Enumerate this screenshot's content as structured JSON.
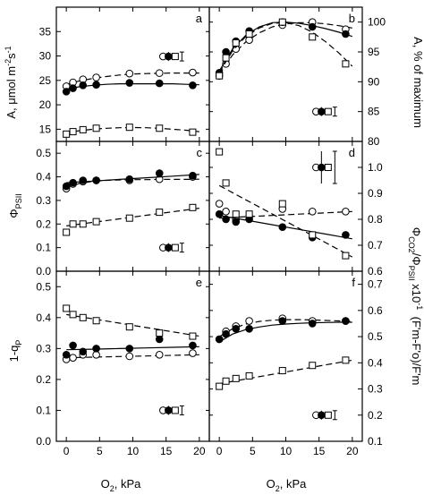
{
  "chart_data": [
    {
      "id": "a",
      "type": "scatter",
      "panel_letter": "a",
      "ylabel": "A, μmol m⁻²s⁻¹",
      "ylim": [
        12.5,
        40
      ],
      "yticks": [
        15,
        20,
        25,
        30,
        35
      ],
      "xticks": [
        0,
        5,
        10,
        15,
        20
      ],
      "series": [
        {
          "marker": "open-circle",
          "line": "dashed",
          "x": [
            0,
            1,
            2.5,
            4.5,
            9.5,
            14,
            19
          ],
          "y": [
            23.8,
            24.6,
            25.2,
            25.6,
            26.4,
            26.5,
            26.6
          ],
          "fit_x": [
            0,
            2,
            4,
            6,
            8,
            10,
            12,
            14,
            16,
            18,
            20
          ],
          "fit_y": [
            24.2,
            24.9,
            25.4,
            25.8,
            26.1,
            26.3,
            26.4,
            26.45,
            26.5,
            26.5,
            26.5
          ]
        },
        {
          "marker": "filled-circle",
          "line": "solid",
          "x": [
            0,
            1,
            2.5,
            4.5,
            9.5,
            14,
            19
          ],
          "y": [
            22.7,
            23.4,
            24.0,
            24.1,
            24.5,
            24.4,
            24.0
          ],
          "fit_x": [
            0,
            2,
            4,
            6,
            8,
            10,
            12,
            14,
            16,
            18,
            20
          ],
          "fit_y": [
            23.2,
            23.7,
            24.0,
            24.2,
            24.3,
            24.3,
            24.3,
            24.3,
            24.3,
            24.2,
            24.1
          ]
        },
        {
          "marker": "open-square",
          "line": "dashed",
          "x": [
            0,
            1,
            2.5,
            4.5,
            9.5,
            14,
            19
          ],
          "y": [
            14.0,
            14.5,
            14.9,
            15.2,
            15.4,
            15.2,
            14.4
          ],
          "fit_x": [
            0,
            2,
            4,
            6,
            8,
            10,
            12,
            14,
            16,
            18,
            20
          ],
          "fit_y": [
            14.3,
            14.7,
            15.0,
            15.2,
            15.3,
            15.35,
            15.3,
            15.2,
            15.0,
            14.8,
            14.5
          ]
        }
      ],
      "legend_symbols": {
        "x": 16.3,
        "y": 29.9
      }
    },
    {
      "id": "b",
      "type": "scatter",
      "panel_letter": "b",
      "ylabel": "A, % of maximum",
      "ylim": [
        80,
        102.5
      ],
      "yticks": [
        80,
        85,
        90,
        95,
        100
      ],
      "xticks": [
        0,
        5,
        10,
        15,
        20
      ],
      "series": [
        {
          "marker": "open-circle",
          "line": "dashed",
          "x": [
            0,
            1,
            2.5,
            4.5,
            9.5,
            14,
            19
          ],
          "y": [
            91.0,
            93.0,
            95.5,
            97.0,
            99.5,
            100,
            98.8
          ],
          "fit_x": [
            0,
            2,
            4,
            6,
            8,
            10,
            12,
            14,
            16,
            18,
            20
          ],
          "fit_y": [
            91.2,
            94.5,
            96.7,
            98.2,
            99.2,
            99.7,
            99.9,
            99.9,
            99.7,
            99.4,
            99.0
          ]
        },
        {
          "marker": "filled-circle",
          "line": "solid",
          "x": [
            0,
            1,
            2.5,
            4.5,
            9.5,
            14,
            19
          ],
          "y": [
            91.5,
            95.0,
            96.8,
            98.5,
            100,
            99.2,
            98.0
          ],
          "fit_x": [
            0,
            2,
            4,
            6,
            8,
            10,
            12,
            14,
            16,
            18,
            20
          ],
          "fit_y": [
            91.8,
            95.5,
            97.8,
            99.2,
            99.9,
            100,
            99.8,
            99.4,
            98.9,
            98.3,
            97.6
          ]
        },
        {
          "marker": "open-square",
          "line": "dashed",
          "x": [
            0,
            1,
            2.5,
            4.5,
            9.5,
            14,
            19
          ],
          "y": [
            91.0,
            94.0,
            96.5,
            98.0,
            100,
            97.5,
            93.0
          ],
          "fit_x": [
            0,
            2,
            4,
            6,
            8,
            10,
            12,
            14,
            16,
            18,
            20
          ],
          "fit_y": [
            91.5,
            95.2,
            97.6,
            99.0,
            99.8,
            99.9,
            99.4,
            98.3,
            96.7,
            94.8,
            92.6
          ]
        }
      ],
      "legend_symbols": {
        "x": 16.3,
        "y": 85.0
      }
    },
    {
      "id": "c",
      "type": "scatter",
      "panel_letter": "c",
      "ylabel": "ΦPSII",
      "ylabel_main": "Φ",
      "ylabel_sub": "PSII",
      "ylim": [
        0,
        0.55
      ],
      "yticks": [
        0,
        0.1,
        0.2,
        0.3,
        0.4,
        0.5
      ],
      "xticks": [
        0,
        5,
        10,
        15,
        20
      ],
      "series": [
        {
          "marker": "open-circle",
          "line": "dashed",
          "x": [
            0,
            1,
            2.5,
            4.5,
            9.5,
            14,
            19
          ],
          "y": [
            0.35,
            0.37,
            0.38,
            0.385,
            0.385,
            0.39,
            0.4
          ],
          "fit_x": [
            0,
            2,
            4,
            6,
            8,
            10,
            12,
            14,
            16,
            18,
            20
          ],
          "fit_y": [
            0.355,
            0.372,
            0.381,
            0.385,
            0.387,
            0.388,
            0.388,
            0.389,
            0.389,
            0.389,
            0.39
          ]
        },
        {
          "marker": "filled-circle",
          "line": "solid",
          "x": [
            0,
            1,
            2.5,
            4.5,
            9.5,
            14,
            19
          ],
          "y": [
            0.36,
            0.375,
            0.385,
            0.385,
            0.39,
            0.415,
            0.405
          ],
          "fit_x": [
            0,
            4,
            8,
            12,
            16,
            20
          ],
          "fit_y": [
            0.375,
            0.382,
            0.389,
            0.396,
            0.403,
            0.41
          ]
        },
        {
          "marker": "open-square",
          "line": "dashed",
          "x": [
            0,
            1,
            2.5,
            4.5,
            9.5,
            14,
            19
          ],
          "y": [
            0.165,
            0.2,
            0.2,
            0.21,
            0.225,
            0.25,
            0.27
          ],
          "fit_x": [
            0,
            4,
            8,
            12,
            16,
            20
          ],
          "fit_y": [
            0.192,
            0.207,
            0.222,
            0.237,
            0.252,
            0.267
          ]
        }
      ],
      "legend_symbols": {
        "x": 16.3,
        "y": 0.1
      }
    },
    {
      "id": "d",
      "type": "scatter",
      "panel_letter": "d",
      "ylabel": "ΦCO2/ΦPSII x10⁻¹",
      "ylim": [
        0.6,
        1.1
      ],
      "yticks": [
        0.6,
        0.7,
        0.8,
        0.9,
        1.0
      ],
      "xticks": [
        0,
        5,
        10,
        15,
        20
      ],
      "series": [
        {
          "marker": "open-circle",
          "line": "dashed",
          "x": [
            0,
            1,
            2.5,
            4.5,
            9.5,
            14,
            19
          ],
          "y": [
            0.86,
            0.83,
            0.8,
            0.81,
            0.84,
            0.83,
            0.83
          ],
          "fit_x": [
            0,
            4,
            8,
            12,
            16,
            20
          ],
          "fit_y": [
            0.805,
            0.81,
            0.815,
            0.82,
            0.825,
            0.83
          ]
        },
        {
          "marker": "filled-circle",
          "line": "solid",
          "x": [
            0,
            1,
            2.5,
            4.5,
            9.5,
            14,
            19
          ],
          "y": [
            0.82,
            0.8,
            0.79,
            0.8,
            0.77,
            0.73,
            0.74
          ],
          "fit_x": [
            0,
            4,
            8,
            12,
            16,
            20
          ],
          "fit_y": [
            0.815,
            0.797,
            0.779,
            0.761,
            0.743,
            0.725
          ]
        },
        {
          "marker": "open-square",
          "line": "dashed",
          "x": [
            0,
            1,
            2.5,
            4.5,
            9.5,
            14,
            19
          ],
          "y": [
            1.06,
            0.94,
            0.82,
            0.82,
            0.86,
            0.74,
            0.66
          ],
          "fit_x": [
            0,
            4,
            8,
            12,
            16,
            20
          ],
          "fit_y": [
            0.93,
            0.875,
            0.82,
            0.765,
            0.71,
            0.655
          ]
        }
      ],
      "legend_symbols": {
        "x": 16.3,
        "y": 1.0
      }
    },
    {
      "id": "e",
      "type": "scatter",
      "panel_letter": "e",
      "ylabel": "1-qP",
      "ylabel_main": "1-q",
      "ylabel_sub": "P",
      "ylim": [
        0,
        0.55
      ],
      "yticks": [
        0,
        0.1,
        0.2,
        0.3,
        0.4,
        0.5
      ],
      "xticks": [
        0,
        5,
        10,
        15,
        20
      ],
      "series": [
        {
          "marker": "open-circle",
          "line": "dashed",
          "x": [
            0,
            1,
            2.5,
            4.5,
            9.5,
            14,
            19
          ],
          "y": [
            0.265,
            0.27,
            0.28,
            0.28,
            0.275,
            0.28,
            0.285
          ],
          "fit_x": [
            0,
            4,
            8,
            12,
            16,
            20
          ],
          "fit_y": [
            0.27,
            0.272,
            0.274,
            0.276,
            0.278,
            0.28
          ]
        },
        {
          "marker": "filled-circle",
          "line": "solid",
          "x": [
            0,
            1,
            2.5,
            4.5,
            9.5,
            14,
            19
          ],
          "y": [
            0.28,
            0.31,
            0.29,
            0.3,
            0.3,
            0.33,
            0.31
          ],
          "fit_x": [
            0,
            4,
            8,
            12,
            16,
            20
          ],
          "fit_y": [
            0.296,
            0.298,
            0.3,
            0.302,
            0.304,
            0.306
          ]
        },
        {
          "marker": "open-square",
          "line": "dashed",
          "x": [
            0,
            1,
            2.5,
            4.5,
            9.5,
            14,
            19
          ],
          "y": [
            0.43,
            0.41,
            0.4,
            0.39,
            0.37,
            0.35,
            0.34
          ],
          "fit_x": [
            0,
            4,
            8,
            12,
            16,
            20
          ],
          "fit_y": [
            0.41,
            0.396,
            0.382,
            0.368,
            0.354,
            0.34
          ]
        }
      ],
      "legend_symbols": {
        "x": 16.3,
        "y": 0.1
      }
    },
    {
      "id": "f",
      "type": "scatter",
      "panel_letter": "f",
      "ylabel": "(F'm-F'o)/F'm",
      "ylim": [
        0.1,
        0.75
      ],
      "yticks": [
        0.1,
        0.2,
        0.3,
        0.4,
        0.5,
        0.6,
        0.7
      ],
      "xticks": [
        0,
        5,
        10,
        15,
        20
      ],
      "series": [
        {
          "marker": "open-circle",
          "line": "dashed",
          "x": [
            0,
            1,
            2.5,
            4.5,
            9.5,
            14,
            19
          ],
          "y": [
            0.49,
            0.52,
            0.54,
            0.56,
            0.57,
            0.56,
            0.56
          ],
          "fit_x": [
            0,
            2,
            4,
            6,
            8,
            10,
            12,
            14,
            16,
            18,
            20
          ],
          "fit_y": [
            0.5,
            0.53,
            0.548,
            0.558,
            0.563,
            0.565,
            0.565,
            0.564,
            0.562,
            0.56,
            0.558
          ]
        },
        {
          "marker": "filled-circle",
          "line": "solid",
          "x": [
            0,
            1,
            2.5,
            4.5,
            9.5,
            14,
            19
          ],
          "y": [
            0.49,
            0.51,
            0.53,
            0.53,
            0.56,
            0.55,
            0.56
          ],
          "fit_x": [
            0,
            2,
            4,
            6,
            8,
            10,
            12,
            14,
            16,
            18,
            20
          ],
          "fit_y": [
            0.48,
            0.51,
            0.527,
            0.537,
            0.544,
            0.548,
            0.551,
            0.553,
            0.554,
            0.555,
            0.555
          ]
        },
        {
          "marker": "open-square",
          "line": "dashed",
          "x": [
            0,
            1,
            2.5,
            4.5,
            9.5,
            14,
            19
          ],
          "y": [
            0.31,
            0.33,
            0.34,
            0.35,
            0.37,
            0.39,
            0.41
          ],
          "fit_x": [
            0,
            4,
            8,
            12,
            16,
            20
          ],
          "fit_y": [
            0.32,
            0.338,
            0.356,
            0.374,
            0.392,
            0.41
          ]
        }
      ],
      "legend_symbols": {
        "x": 16.3,
        "y": 0.2
      }
    }
  ],
  "x_axis": {
    "label": "O₂, kPa",
    "label_main": "O",
    "label_sub": "2",
    "label_rest": ", kPa",
    "ticks": [
      "0",
      "5",
      "10",
      "15",
      "20"
    ],
    "xlim": [
      -1.5,
      21.5
    ]
  },
  "left_ylabel_a": {
    "main": "A, μmol m",
    "sup1": "-2",
    "mid": "s",
    "sup2": "-1"
  },
  "right_ylabel_d": {
    "pre": "Φ",
    "sub1": "CO2",
    "slash": "/Φ",
    "sub2": "PSII",
    "post": " x10",
    "sup": "-1"
  },
  "right_ylabel_f": "(F'm-F'o)/F'm"
}
